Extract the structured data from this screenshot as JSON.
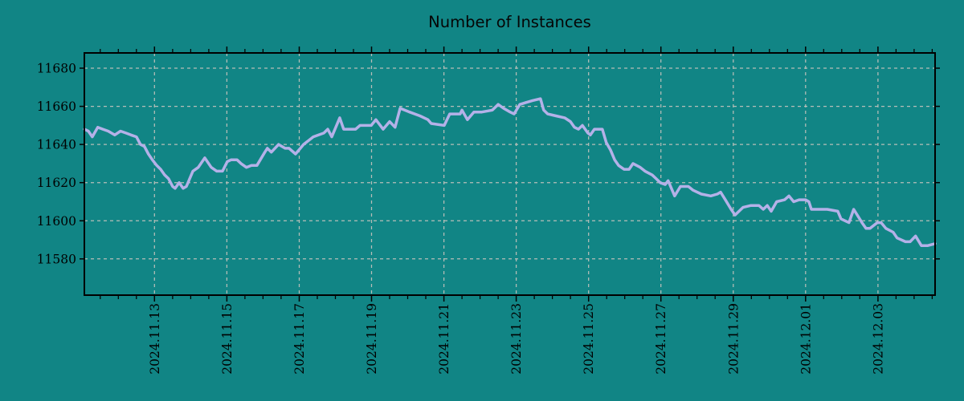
{
  "figure": {
    "title": "Number of Instances",
    "background_color": "#118585",
    "text_color": "#050505"
  },
  "chart_data": {
    "type": "line",
    "title": "Number of Instances",
    "grid": {
      "style": "dashed",
      "color": "#b6beb8",
      "on": true
    },
    "legend": "none",
    "x_axis": {
      "unit": "days since 2024-11-11 00:00",
      "lim": [
        0.06,
        23.58
      ],
      "major_ticks": [
        2,
        4,
        6,
        8,
        10,
        12,
        14,
        16,
        18,
        20,
        22
      ],
      "major_tick_labels": [
        "2024.11.13",
        "2024.11.15",
        "2024.11.17",
        "2024.11.19",
        "2024.11.21",
        "2024.11.23",
        "2024.11.25",
        "2024.11.27",
        "2024.11.29",
        "2024.12.01",
        "2024.12.03"
      ],
      "minor_tick_interval": 0.5
    },
    "y_axis": {
      "lim": [
        11561,
        11688
      ],
      "major_ticks": [
        11580,
        11600,
        11620,
        11640,
        11660,
        11680
      ],
      "major_tick_labels": [
        "11580",
        "11600",
        "11620",
        "11640",
        "11660",
        "11680"
      ]
    },
    "series": [
      {
        "name": "Number of Instances",
        "color": "#b4b1e8",
        "x": [
          0.06,
          0.17,
          0.28,
          0.43,
          0.57,
          0.72,
          0.9,
          1.06,
          1.21,
          1.35,
          1.5,
          1.61,
          1.72,
          1.83,
          1.94,
          2.06,
          2.17,
          2.28,
          2.39,
          2.5,
          2.57,
          2.68,
          2.79,
          2.88,
          3.06,
          3.21,
          3.39,
          3.57,
          3.72,
          3.88,
          4.01,
          4.12,
          4.28,
          4.39,
          4.54,
          4.68,
          4.83,
          5.05,
          5.12,
          5.23,
          5.43,
          5.61,
          5.72,
          5.9,
          6.12,
          6.39,
          6.68,
          6.79,
          6.9,
          7.12,
          7.23,
          7.56,
          7.68,
          7.99,
          8.12,
          8.32,
          8.5,
          8.65,
          8.79,
          9.05,
          9.34,
          9.56,
          9.65,
          10.01,
          10.16,
          10.45,
          10.5,
          10.65,
          10.83,
          11.05,
          11.34,
          11.5,
          11.65,
          11.83,
          11.94,
          12.1,
          12.27,
          12.45,
          12.67,
          12.76,
          12.87,
          13.1,
          13.34,
          13.5,
          13.61,
          13.72,
          13.83,
          13.98,
          14.05,
          14.16,
          14.38,
          14.49,
          14.61,
          14.72,
          14.83,
          14.98,
          15.12,
          15.23,
          15.43,
          15.56,
          15.76,
          15.87,
          15.98,
          16.12,
          16.2,
          16.38,
          16.54,
          16.76,
          16.89,
          17.12,
          17.38,
          17.56,
          17.65,
          17.78,
          17.94,
          18.05,
          18.27,
          18.49,
          18.71,
          18.83,
          18.94,
          19.05,
          19.2,
          19.42,
          19.54,
          19.67,
          19.82,
          20.0,
          20.09,
          20.16,
          20.34,
          20.6,
          20.89,
          20.98,
          21.2,
          21.33,
          21.56,
          21.67,
          21.78,
          21.98,
          22.09,
          22.22,
          22.42,
          22.53,
          22.76,
          22.89,
          23.04,
          23.2,
          23.38,
          23.58
        ],
        "values": [
          11648,
          11647,
          11644,
          11649,
          11648,
          11647,
          11645,
          11647,
          11646,
          11645,
          11644,
          11640,
          11639,
          11635,
          11632,
          11629,
          11627,
          11624,
          11622,
          11618,
          11617,
          11620,
          11617,
          11618,
          11626,
          11628,
          11633,
          11628,
          11626,
          11626,
          11631,
          11632,
          11632,
          11630,
          11628,
          11629,
          11629,
          11636,
          11638,
          11636,
          11640,
          11638,
          11638,
          11635,
          11640,
          11644,
          11646,
          11648,
          11644,
          11654,
          11648,
          11648,
          11650,
          11650,
          11653,
          11648,
          11652,
          11649,
          11659,
          11657,
          11655,
          11653,
          11651,
          11650,
          11656,
          11656,
          11658,
          11653,
          11657,
          11657,
          11658,
          11661,
          11659,
          11657,
          11656,
          11661,
          11662,
          11663,
          11664,
          11658,
          11656,
          11655,
          11654,
          11652,
          11649,
          11648,
          11650,
          11646,
          11645,
          11648,
          11648,
          11641,
          11637,
          11632,
          11629,
          11627,
          11627,
          11630,
          11628,
          11626,
          11624,
          11622,
          11620,
          11619,
          11621,
          11613,
          11618,
          11618,
          11616,
          11614,
          11613,
          11614,
          11615,
          11611,
          11606,
          11603,
          11607,
          11608,
          11608,
          11606,
          11608,
          11605,
          11610,
          11611,
          11613,
          11610,
          11611,
          11611,
          11610,
          11606,
          11606,
          11606,
          11605,
          11601,
          11599,
          11606,
          11599,
          11596,
          11596,
          11599,
          11599,
          11596,
          11594,
          11591,
          11589,
          11589,
          11592,
          11587,
          11587,
          11588
        ]
      }
    ]
  }
}
